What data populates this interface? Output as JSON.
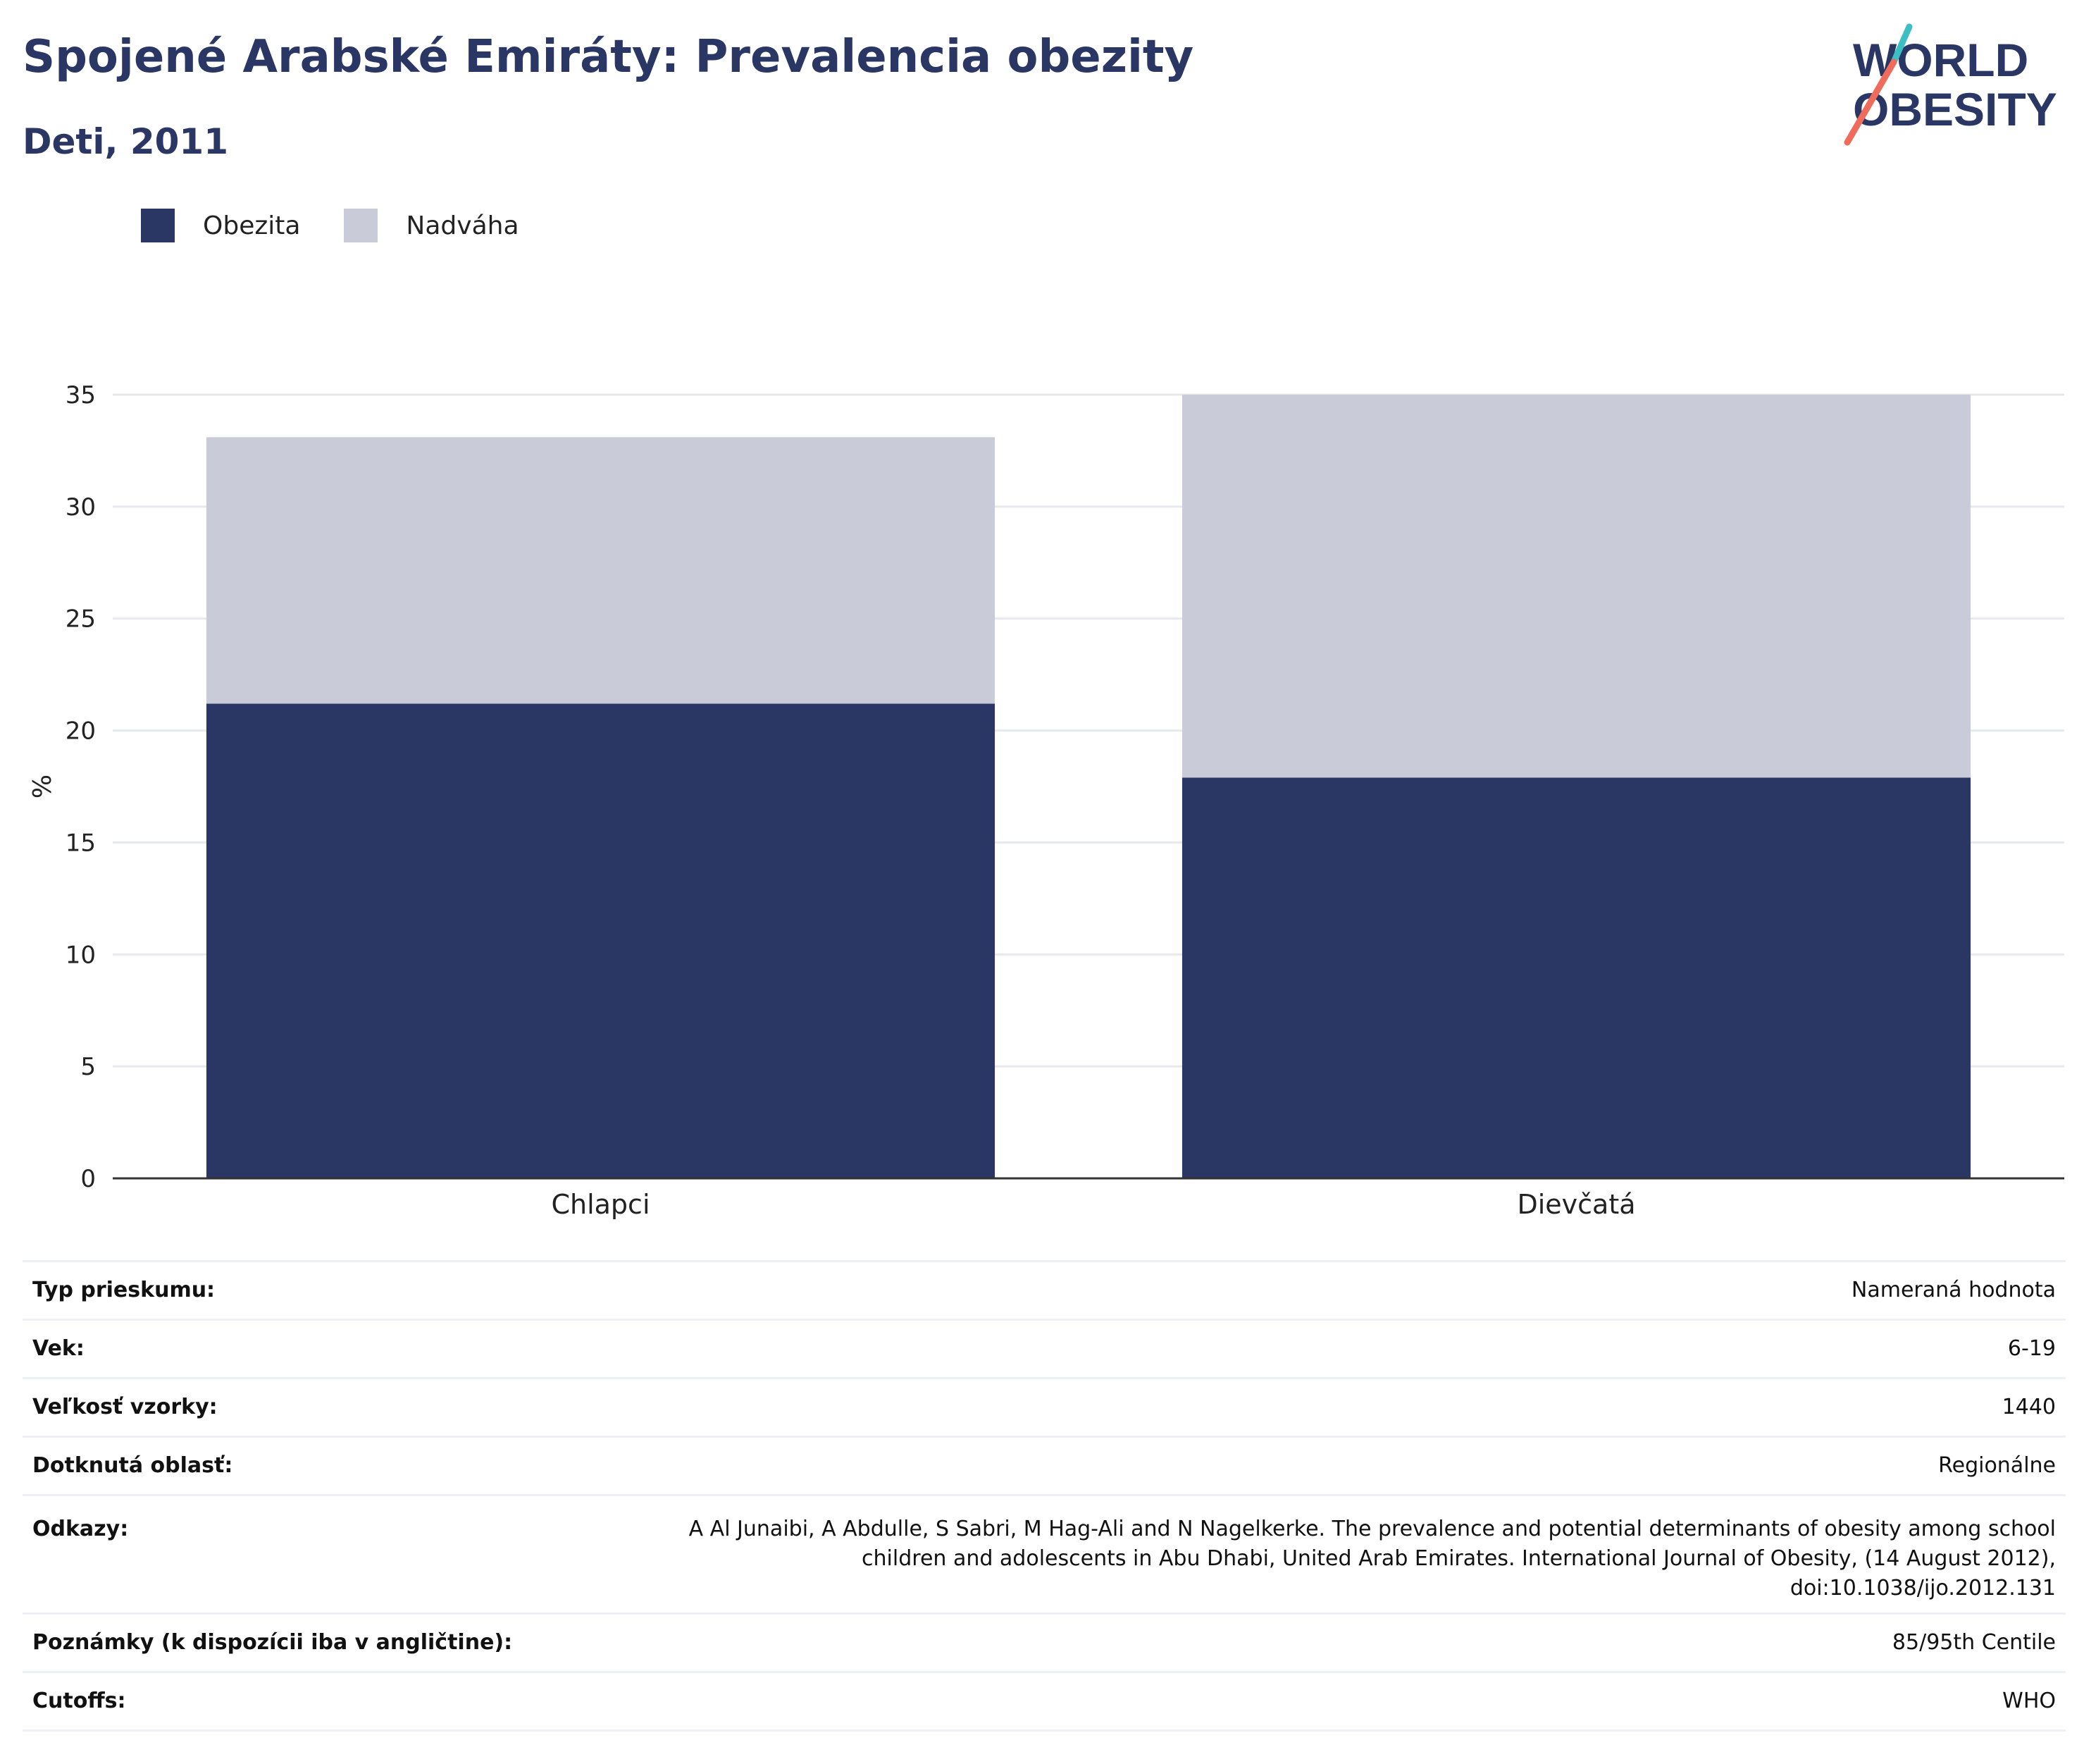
{
  "header": {
    "title": "Spojené Arabské Emiráty: Prevalencia obezity",
    "subtitle": "Deti, 2011"
  },
  "logo": {
    "line1": "WORLD",
    "line2": "OBESITY",
    "accent_teal": "#3bbfc3",
    "accent_coral": "#ef6b5b"
  },
  "colors": {
    "obesity": "#2a3663",
    "overweight": "#c9ccd8",
    "gridline": "#e8e9ee",
    "axis": "#333333"
  },
  "chart_data": {
    "type": "bar",
    "stacked": true,
    "categories": [
      "Chlapci",
      "Dievčatá"
    ],
    "series": [
      {
        "name": "Obezita",
        "values": [
          21.2,
          17.9
        ]
      },
      {
        "name": "Nadváha",
        "values": [
          11.9,
          17.1
        ]
      }
    ],
    "ylabel": "%",
    "ylim": [
      0,
      35
    ],
    "yticks": [
      "0",
      "5",
      "10",
      "15",
      "20",
      "25",
      "30",
      "35"
    ],
    "grid": true,
    "legend_position": "top-left"
  },
  "details": [
    {
      "label": "Typ prieskumu:",
      "value": "Nameraná hodnota"
    },
    {
      "label": "Vek:",
      "value": "6-19"
    },
    {
      "label": "Veľkosť vzorky:",
      "value": "1440"
    },
    {
      "label": "Dotknutá oblasť:",
      "value": "Regionálne"
    },
    {
      "label": "Odkazy:",
      "value_lines": [
        "A Al Junaibi, A Abdulle, S Sabri, M Hag-Ali and N Nagelkerke. The prevalence and potential determinants of obesity among school",
        "children and adolescents in Abu Dhabi, United Arab Emirates. International Journal of Obesity, (14 August 2012),",
        "doi:10.1038/ijo.2012.131"
      ]
    },
    {
      "label": "Poznámky (k dispozícii iba v angličtine):",
      "value": "85/95th Centile"
    },
    {
      "label": "Cutoffs:",
      "value": "WHO"
    }
  ]
}
